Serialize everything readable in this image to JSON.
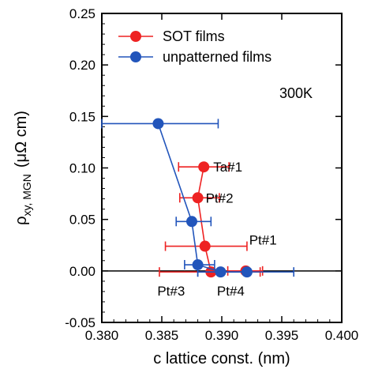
{
  "chart_data": {
    "type": "scatter",
    "xlabel": "c lattice const. (nm)",
    "ylabel_parts": {
      "main": "ρ",
      "sub": "xy, MGN",
      "unit": "(μΩ cm)"
    },
    "xlim": [
      0.38,
      0.4
    ],
    "ylim": [
      -0.05,
      0.25
    ],
    "xticks": [
      "0.380",
      "0.385",
      "0.390",
      "0.395",
      "0.400"
    ],
    "yticks": [
      "-0.05",
      "0.00",
      "0.05",
      "0.10",
      "0.15",
      "0.20",
      "0.25"
    ],
    "xtick_values": [
      0.38,
      0.385,
      0.39,
      0.395,
      0.4
    ],
    "ytick_values": [
      -0.05,
      0.0,
      0.05,
      0.1,
      0.15,
      0.2,
      0.25
    ],
    "legend_position": "top-left",
    "annotation": "300K",
    "series": [
      {
        "name": "SOT films",
        "color": "#ee2222",
        "points": [
          {
            "x": 0.3885,
            "y": 0.101,
            "xerr": [
              0.3864,
              0.3906
            ],
            "label": "Ta#1"
          },
          {
            "x": 0.388,
            "y": 0.071,
            "xerr": [
              0.3865,
              0.3898
            ],
            "label": "Pt#2"
          },
          {
            "x": 0.3886,
            "y": 0.024,
            "xerr": [
              0.3853,
              0.3921
            ],
            "label": "Pt#1"
          },
          {
            "x": 0.3891,
            "y": -0.001,
            "xerr": [
              0.3848,
              0.3932
            ],
            "label": "Pt#3"
          },
          {
            "x": 0.392,
            "y": 0.0,
            "xerr": [
              0.3905,
              0.3934
            ],
            "label": ""
          }
        ]
      },
      {
        "name": "unpatterned films",
        "color": "#2255bb",
        "points": [
          {
            "x": 0.3847,
            "y": 0.143,
            "xerr": [
              0.38,
              0.3897
            ],
            "label": ""
          },
          {
            "x": 0.3875,
            "y": 0.048,
            "xerr": [
              0.3862,
              0.3891
            ],
            "label": ""
          },
          {
            "x": 0.388,
            "y": 0.006,
            "xerr": [
              0.3869,
              0.3894
            ],
            "label": ""
          },
          {
            "x": 0.3899,
            "y": -0.001,
            "xerr": [
              0.388,
              0.392
            ],
            "label": ""
          },
          {
            "x": 0.3921,
            "y": -0.001,
            "xerr": [
              0.388,
              0.396
            ],
            "label": "Pt#4"
          }
        ]
      }
    ]
  }
}
